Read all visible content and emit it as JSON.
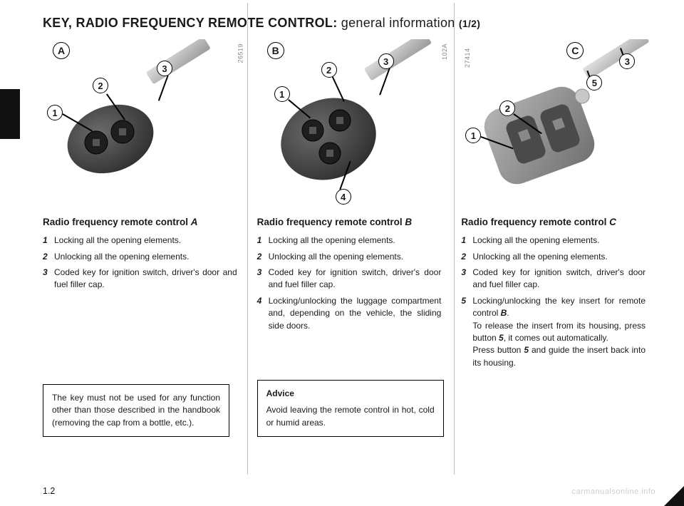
{
  "title_main": "KEY, RADIO FREQUENCY REMOTE CONTROL:",
  "title_sub": "  general information ",
  "title_frac": "(1/2)",
  "page_number": "1.2",
  "watermark": "carmanualsonline.info",
  "columns": {
    "A": {
      "letter": "A",
      "photo_id": "26519",
      "heading_pre": "Radio frequency remote control ",
      "heading_key": "A",
      "callouts": [
        "1",
        "2",
        "3"
      ],
      "items": [
        {
          "n": "1",
          "t": "Locking all the opening elements."
        },
        {
          "n": "2",
          "t": "Unlocking all the opening elements."
        },
        {
          "n": "3",
          "t": "Coded key for ignition switch, driver's door and fuel filler cap."
        }
      ],
      "note": "The key must not be used for any function other than those described in the handbook (removing the cap from a bottle, etc.)."
    },
    "B": {
      "letter": "B",
      "photo_id": "102A",
      "heading_pre": "Radio frequency remote control ",
      "heading_key": "B",
      "callouts": [
        "1",
        "2",
        "3",
        "4"
      ],
      "items": [
        {
          "n": "1",
          "t": "Locking all the opening elements."
        },
        {
          "n": "2",
          "t": "Unlocking all the opening elements."
        },
        {
          "n": "3",
          "t": "Coded key for ignition switch, driver's door and fuel filler cap."
        },
        {
          "n": "4",
          "t": "Locking/unlocking the luggage compartment and, depending on the vehicle, the sliding side doors."
        }
      ],
      "note_hd": "Advice",
      "note": "Avoid leaving the remote control in hot, cold or humid areas."
    },
    "C": {
      "letter": "C",
      "photo_id": "27414",
      "heading_pre": "Radio frequency remote control ",
      "heading_key": "C",
      "callouts": [
        "1",
        "2",
        "3",
        "5"
      ],
      "items": [
        {
          "n": "1",
          "t": "Locking all the opening elements."
        },
        {
          "n": "2",
          "t": "Unlocking all the opening elements."
        },
        {
          "n": "3",
          "t": "Coded key for ignition switch, driver's door and fuel filler cap."
        },
        {
          "n": "5",
          "html": "Locking/unlocking the key insert for remote control <span class='bi'>B</span>.<br>To release the insert from its housing, press button <span class='bi'>5</span>, it comes out automatically.<br>Press button <span class='bi'>5</span> and guide the insert back into its housing."
        }
      ]
    }
  },
  "style": {
    "page_bg": "#ffffff",
    "text_color": "#1a1a1a",
    "divider_color": "#bfbfbf",
    "tab_color": "#111111",
    "watermark_color": "#cfcfcf",
    "key_body": "#4a4a4a",
    "key_body_light": "#6b6b6b",
    "key_blade": "#bcbcbc",
    "key_blade_light": "#dcdcdc",
    "key_button": "#2a2a2a",
    "fold_key_body": "#8a8a8a",
    "fold_key_body_light": "#b5b5b5"
  }
}
